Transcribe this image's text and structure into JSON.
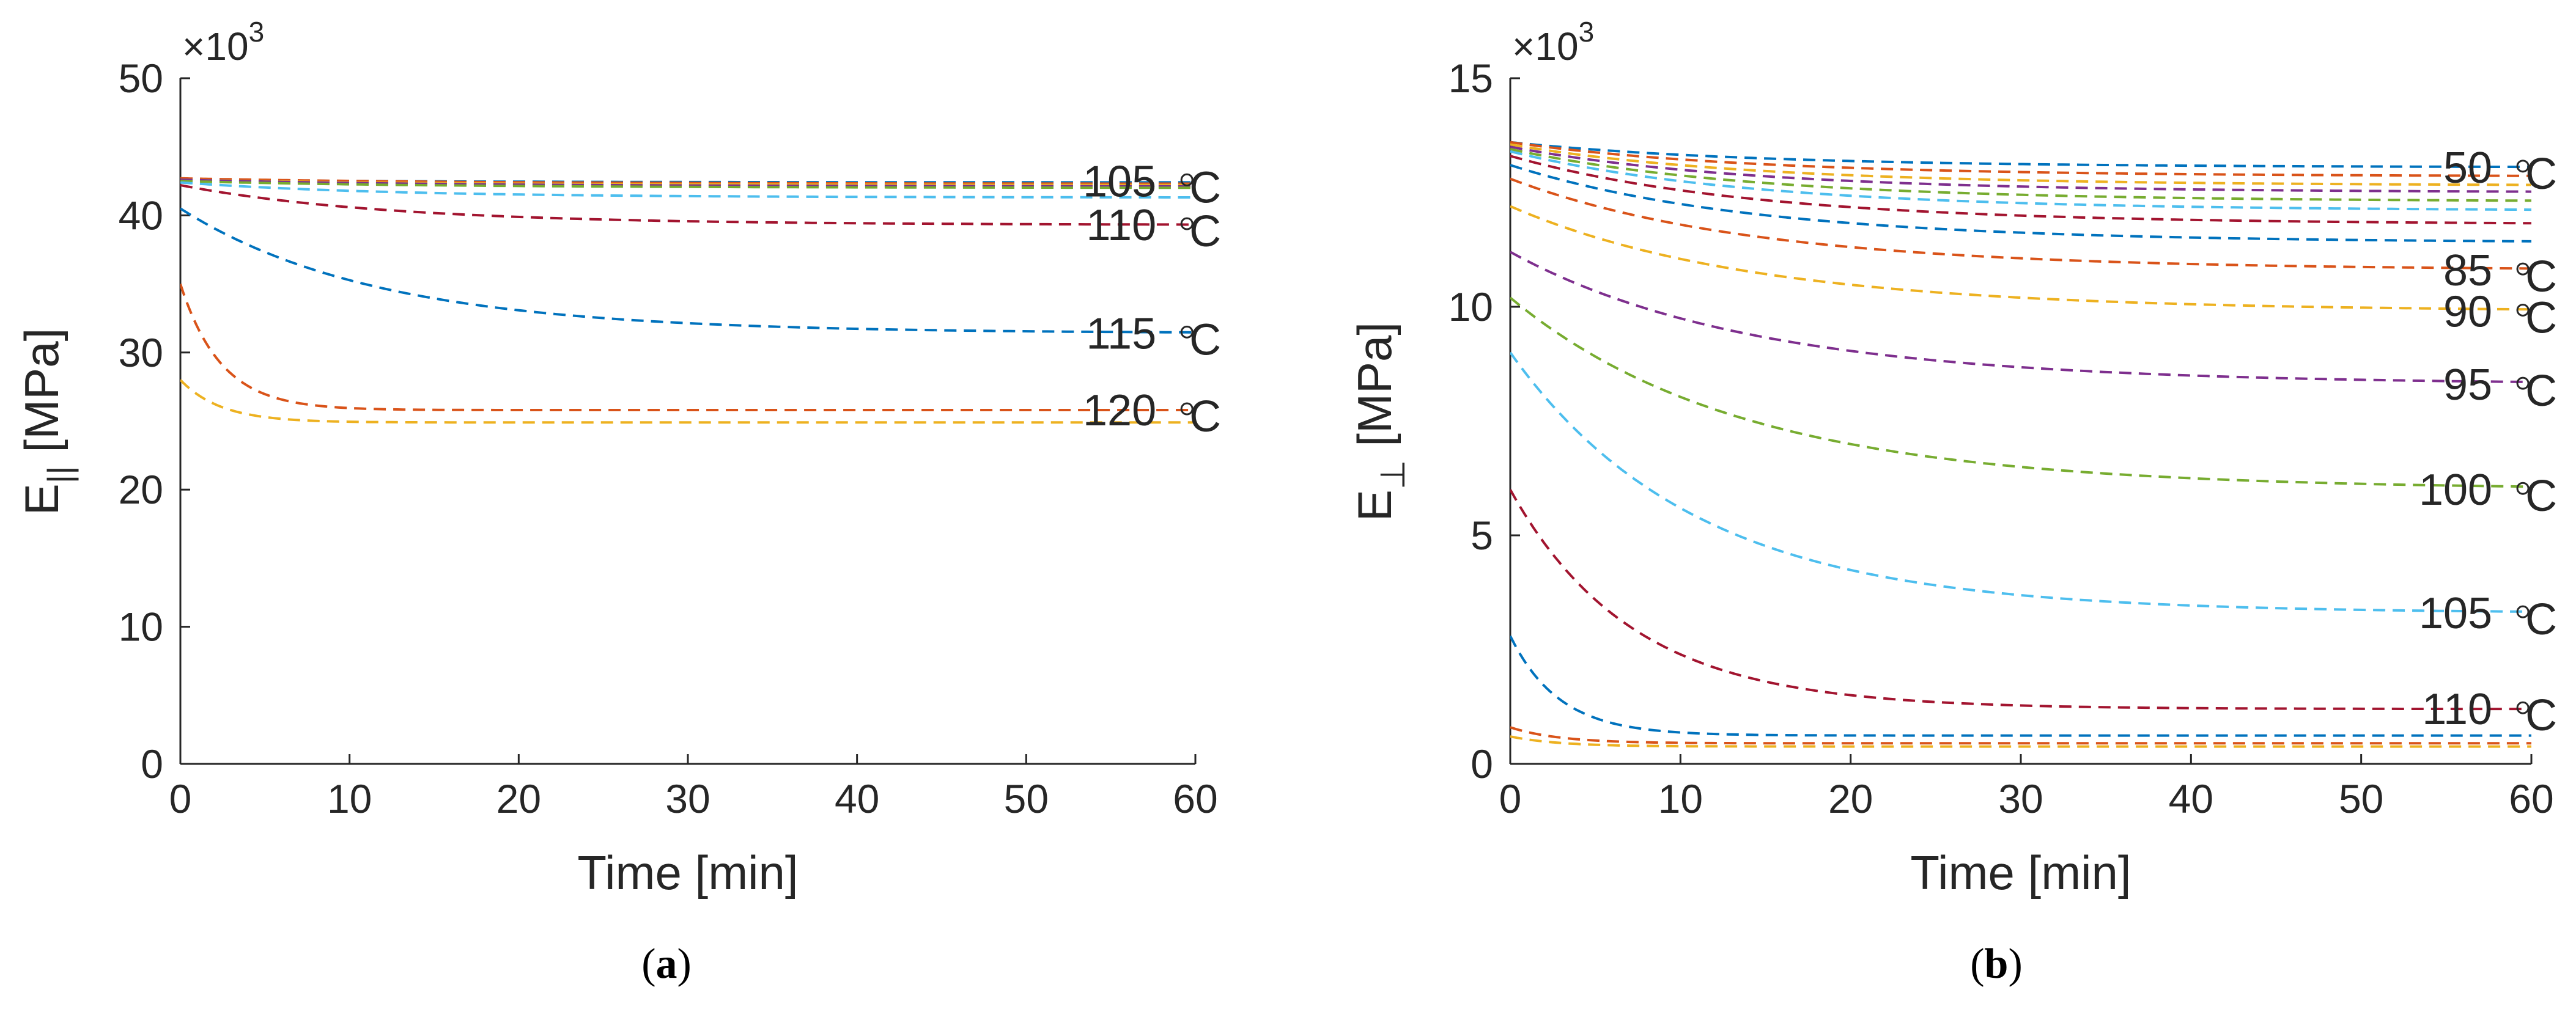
{
  "chart_data": [
    {
      "type": "line",
      "caption": "(a)",
      "caption_letter": "a",
      "xlabel": "Time [min]",
      "ylabel_main": "E",
      "ylabel_sub": "||",
      "ylabel_unit": " [MPa]",
      "multiplier_base": "×10",
      "multiplier_exp": "3",
      "xlim": [
        0,
        60
      ],
      "ylim": [
        0,
        50
      ],
      "xticks": [
        0,
        10,
        20,
        30,
        40,
        50,
        60
      ],
      "yticks": [
        0,
        10,
        20,
        30,
        40,
        50
      ],
      "series": [
        {
          "name": "s1",
          "color": "#0072BD",
          "start": 42.6,
          "end": 42.4,
          "tau": 20
        },
        {
          "name": "s2",
          "color": "#D95319",
          "start": 42.7,
          "end": 42.3,
          "tau": 20
        },
        {
          "name": "s3",
          "color": "#EDB120",
          "start": 42.6,
          "end": 42.2,
          "tau": 20
        },
        {
          "name": "s4",
          "color": "#7E2F8E",
          "start": 42.6,
          "end": 42.1,
          "tau": 20
        },
        {
          "name": "s5",
          "color": "#77AC30",
          "start": 42.5,
          "end": 42.0,
          "tau": 20
        },
        {
          "name": "105",
          "color": "#4DBEEE",
          "start": 42.4,
          "end": 41.3,
          "tau": 15
        },
        {
          "name": "110",
          "color": "#A2142F",
          "start": 42.2,
          "end": 39.3,
          "tau": 15
        },
        {
          "name": "115",
          "color": "#0072BD",
          "start": 40.5,
          "end": 31.4,
          "tau": 14
        },
        {
          "name": "120a",
          "color": "#D95319",
          "start": 35.0,
          "end": 25.8,
          "tau": 2.5
        },
        {
          "name": "120b",
          "color": "#EDB120",
          "start": 28.0,
          "end": 24.9,
          "tau": 2.5
        }
      ],
      "annotations": [
        {
          "label": "105",
          "unit": "°C",
          "x": 59.5,
          "y": 42.5
        },
        {
          "label": "110",
          "unit": "°C",
          "x": 59.5,
          "y": 39.3
        },
        {
          "label": "115",
          "unit": "°C",
          "x": 59.5,
          "y": 31.4
        },
        {
          "label": "120",
          "unit": "°C",
          "x": 59.5,
          "y": 25.8
        }
      ]
    },
    {
      "type": "line",
      "caption": "(b)",
      "caption_letter": "b",
      "xlabel": "Time [min]",
      "ylabel_main": "E",
      "ylabel_sub": "⊥",
      "ylabel_unit": " [MPa]",
      "multiplier_base": "×10",
      "multiplier_exp": "3",
      "xlim": [
        0,
        60
      ],
      "ylim": [
        0,
        15
      ],
      "xticks": [
        0,
        10,
        20,
        30,
        40,
        50,
        60
      ],
      "yticks": [
        0,
        5,
        10,
        15
      ],
      "series": [
        {
          "name": "50",
          "color": "#0072BD",
          "start": 13.6,
          "end": 13.05,
          "tau": 18
        },
        {
          "name": "55",
          "color": "#D95319",
          "start": 13.6,
          "end": 12.85,
          "tau": 18
        },
        {
          "name": "60",
          "color": "#EDB120",
          "start": 13.55,
          "end": 12.65,
          "tau": 18
        },
        {
          "name": "65",
          "color": "#7E2F8E",
          "start": 13.5,
          "end": 12.5,
          "tau": 18
        },
        {
          "name": "70",
          "color": "#77AC30",
          "start": 13.45,
          "end": 12.3,
          "tau": 18
        },
        {
          "name": "75",
          "color": "#4DBEEE",
          "start": 13.4,
          "end": 12.1,
          "tau": 18
        },
        {
          "name": "80a",
          "color": "#A2142F",
          "start": 13.3,
          "end": 11.8,
          "tau": 18
        },
        {
          "name": "80b",
          "color": "#0072BD",
          "start": 13.1,
          "end": 11.4,
          "tau": 18
        },
        {
          "name": "85",
          "color": "#D95319",
          "start": 12.8,
          "end": 10.8,
          "tau": 18
        },
        {
          "name": "90",
          "color": "#EDB120",
          "start": 12.2,
          "end": 9.9,
          "tau": 18
        },
        {
          "name": "95",
          "color": "#7E2F8E",
          "start": 11.2,
          "end": 8.3,
          "tau": 18
        },
        {
          "name": "100",
          "color": "#77AC30",
          "start": 10.2,
          "end": 6.0,
          "tau": 17
        },
        {
          "name": "105",
          "color": "#4DBEEE",
          "start": 9.0,
          "end": 3.3,
          "tau": 13
        },
        {
          "name": "110",
          "color": "#A2142F",
          "start": 6.0,
          "end": 1.2,
          "tau": 8
        },
        {
          "name": "115",
          "color": "#0072BD",
          "start": 2.8,
          "end": 0.62,
          "tau": 3
        },
        {
          "name": "120a",
          "color": "#D95319",
          "start": 0.8,
          "end": 0.45,
          "tau": 3
        },
        {
          "name": "120b",
          "color": "#EDB120",
          "start": 0.6,
          "end": 0.38,
          "tau": 3
        }
      ],
      "annotations": [
        {
          "label": "50",
          "unit": "°C",
          "x": 59.5,
          "y": 13.05
        },
        {
          "label": "85",
          "unit": "°C",
          "x": 59.5,
          "y": 10.8
        },
        {
          "label": "90",
          "unit": "°C",
          "x": 59.5,
          "y": 9.9
        },
        {
          "label": "95",
          "unit": "°C",
          "x": 59.5,
          "y": 8.3
        },
        {
          "label": "100",
          "unit": "°C",
          "x": 59.5,
          "y": 6.0
        },
        {
          "label": "105",
          "unit": "°C",
          "x": 59.5,
          "y": 3.3
        },
        {
          "label": "110",
          "unit": "°C",
          "x": 59.5,
          "y": 1.2
        }
      ]
    }
  ]
}
